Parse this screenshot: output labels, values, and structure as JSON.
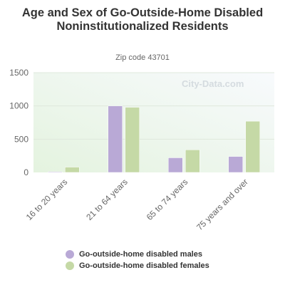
{
  "chart_data": {
    "type": "bar",
    "title": "Age and Sex of Go-Outside-Home Disabled Noninstitutionalized Residents",
    "subtitle": "Zip code 43701",
    "categories": [
      "16 to 20 years",
      "21 to 64 years",
      "65 to 74 years",
      "75 years and over"
    ],
    "series": [
      {
        "name": "Go-outside-home disabled males",
        "color": "#b9a9d6",
        "values": [
          10,
          1000,
          220,
          240
        ]
      },
      {
        "name": "Go-outside-home disabled females",
        "color": "#c5d9a6",
        "values": [
          80,
          980,
          340,
          770
        ]
      }
    ],
    "yticks": [
      0,
      500,
      1000,
      1500
    ],
    "ylim": [
      0,
      1500
    ],
    "grid": true,
    "legend": "bottom"
  },
  "watermark": "City-Data.com"
}
